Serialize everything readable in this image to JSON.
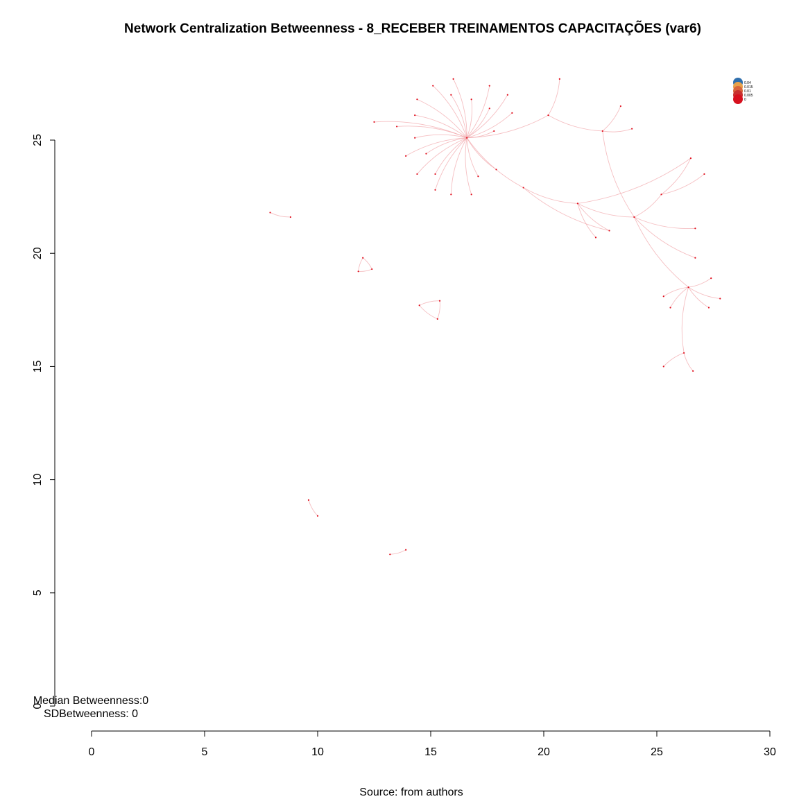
{
  "chart_data": {
    "type": "scatter",
    "subtype": "network-graph",
    "title": "Network Centralization Betweenness - 8_RECEBER TREINAMENTOS CAPACITAÇÕES (var6)",
    "xlabel": "",
    "ylabel": "",
    "caption": "Source: from authors",
    "xlim": [
      0,
      30
    ],
    "ylim": [
      0,
      25
    ],
    "x_ticks": [
      "0",
      "5",
      "10",
      "15",
      "20",
      "25",
      "30"
    ],
    "y_ticks": [
      "0",
      "5",
      "10",
      "15",
      "20",
      "25"
    ],
    "stats": [
      "Median Betweenness:0",
      "SDBetweenness: 0"
    ],
    "legend": {
      "placement": "top-right",
      "entries": [
        {
          "label": "0.04",
          "color": "#2f6fad"
        },
        {
          "label": "0.015",
          "color": "#e8a24a"
        },
        {
          "label": "0.01",
          "color": "#d9653b"
        },
        {
          "label": "0.005",
          "color": "#c8302f"
        },
        {
          "label": "0",
          "color": "#d7101e"
        }
      ]
    },
    "colors": {
      "edge": "#f2a9ad",
      "node": "#e0101e"
    },
    "hubs": [
      {
        "x": 16.6,
        "y": 25.1
      },
      {
        "x": 21.5,
        "y": 22.2
      },
      {
        "x": 24.0,
        "y": 21.6
      },
      {
        "x": 26.4,
        "y": 18.5
      }
    ],
    "nodes": [
      {
        "x": 16.6,
        "y": 25.1
      },
      {
        "x": 16.0,
        "y": 27.7
      },
      {
        "x": 15.9,
        "y": 27.0
      },
      {
        "x": 15.1,
        "y": 27.4
      },
      {
        "x": 14.4,
        "y": 26.8
      },
      {
        "x": 14.3,
        "y": 26.1
      },
      {
        "x": 13.5,
        "y": 25.6
      },
      {
        "x": 14.3,
        "y": 25.1
      },
      {
        "x": 14.8,
        "y": 24.4
      },
      {
        "x": 13.9,
        "y": 24.3
      },
      {
        "x": 14.4,
        "y": 23.5
      },
      {
        "x": 15.2,
        "y": 23.5
      },
      {
        "x": 15.2,
        "y": 22.8
      },
      {
        "x": 15.9,
        "y": 22.6
      },
      {
        "x": 17.1,
        "y": 23.4
      },
      {
        "x": 16.8,
        "y": 22.6
      },
      {
        "x": 17.9,
        "y": 23.7
      },
      {
        "x": 17.8,
        "y": 25.4
      },
      {
        "x": 17.6,
        "y": 26.4
      },
      {
        "x": 18.6,
        "y": 26.2
      },
      {
        "x": 16.8,
        "y": 26.8
      },
      {
        "x": 17.6,
        "y": 27.4
      },
      {
        "x": 18.4,
        "y": 27.0
      },
      {
        "x": 12.5,
        "y": 25.8
      },
      {
        "x": 19.1,
        "y": 22.9
      },
      {
        "x": 20.2,
        "y": 26.1
      },
      {
        "x": 20.7,
        "y": 27.7
      },
      {
        "x": 22.6,
        "y": 25.4
      },
      {
        "x": 23.4,
        "y": 26.5
      },
      {
        "x": 23.9,
        "y": 25.5
      },
      {
        "x": 21.5,
        "y": 22.2
      },
      {
        "x": 22.3,
        "y": 20.7
      },
      {
        "x": 22.9,
        "y": 21.0
      },
      {
        "x": 24.0,
        "y": 21.6
      },
      {
        "x": 25.2,
        "y": 22.6
      },
      {
        "x": 26.5,
        "y": 24.2
      },
      {
        "x": 27.1,
        "y": 23.5
      },
      {
        "x": 26.7,
        "y": 21.1
      },
      {
        "x": 26.7,
        "y": 19.8
      },
      {
        "x": 26.4,
        "y": 18.5
      },
      {
        "x": 27.3,
        "y": 17.6
      },
      {
        "x": 27.8,
        "y": 18.0
      },
      {
        "x": 27.4,
        "y": 18.9
      },
      {
        "x": 25.3,
        "y": 18.1
      },
      {
        "x": 25.6,
        "y": 17.6
      },
      {
        "x": 26.2,
        "y": 15.6
      },
      {
        "x": 25.3,
        "y": 15.0
      },
      {
        "x": 26.6,
        "y": 14.8
      },
      {
        "x": 12.0,
        "y": 19.8
      },
      {
        "x": 11.8,
        "y": 19.2
      },
      {
        "x": 12.4,
        "y": 19.3
      },
      {
        "x": 14.5,
        "y": 17.7
      },
      {
        "x": 15.3,
        "y": 17.1
      },
      {
        "x": 15.4,
        "y": 17.9
      },
      {
        "x": 7.9,
        "y": 21.8
      },
      {
        "x": 8.8,
        "y": 21.6
      },
      {
        "x": 9.6,
        "y": 9.1
      },
      {
        "x": 10.0,
        "y": 8.4
      },
      {
        "x": 13.2,
        "y": 6.7
      },
      {
        "x": 13.9,
        "y": 6.9
      }
    ],
    "edges": [
      [
        0,
        1
      ],
      [
        0,
        2
      ],
      [
        0,
        3
      ],
      [
        0,
        4
      ],
      [
        0,
        5
      ],
      [
        0,
        6
      ],
      [
        0,
        7
      ],
      [
        0,
        8
      ],
      [
        0,
        9
      ],
      [
        0,
        10
      ],
      [
        0,
        11
      ],
      [
        0,
        12
      ],
      [
        0,
        13
      ],
      [
        0,
        14
      ],
      [
        0,
        15
      ],
      [
        0,
        16
      ],
      [
        0,
        17
      ],
      [
        0,
        18
      ],
      [
        0,
        19
      ],
      [
        0,
        20
      ],
      [
        0,
        21
      ],
      [
        0,
        22
      ],
      [
        0,
        23
      ],
      [
        0,
        24
      ],
      [
        0,
        25
      ],
      [
        25,
        26
      ],
      [
        25,
        27
      ],
      [
        27,
        28
      ],
      [
        27,
        29
      ],
      [
        24,
        30
      ],
      [
        30,
        31
      ],
      [
        30,
        32
      ],
      [
        30,
        33
      ],
      [
        27,
        33
      ],
      [
        33,
        34
      ],
      [
        34,
        35
      ],
      [
        34,
        36
      ],
      [
        33,
        37
      ],
      [
        33,
        38
      ],
      [
        33,
        39
      ],
      [
        39,
        40
      ],
      [
        39,
        41
      ],
      [
        39,
        42
      ],
      [
        39,
        43
      ],
      [
        39,
        44
      ],
      [
        39,
        45
      ],
      [
        45,
        46
      ],
      [
        45,
        47
      ],
      [
        48,
        49
      ],
      [
        49,
        50
      ],
      [
        50,
        48
      ],
      [
        51,
        52
      ],
      [
        52,
        53
      ],
      [
        53,
        51
      ],
      [
        54,
        55
      ],
      [
        56,
        57
      ],
      [
        58,
        59
      ],
      [
        30,
        35
      ],
      [
        24,
        32
      ]
    ]
  }
}
